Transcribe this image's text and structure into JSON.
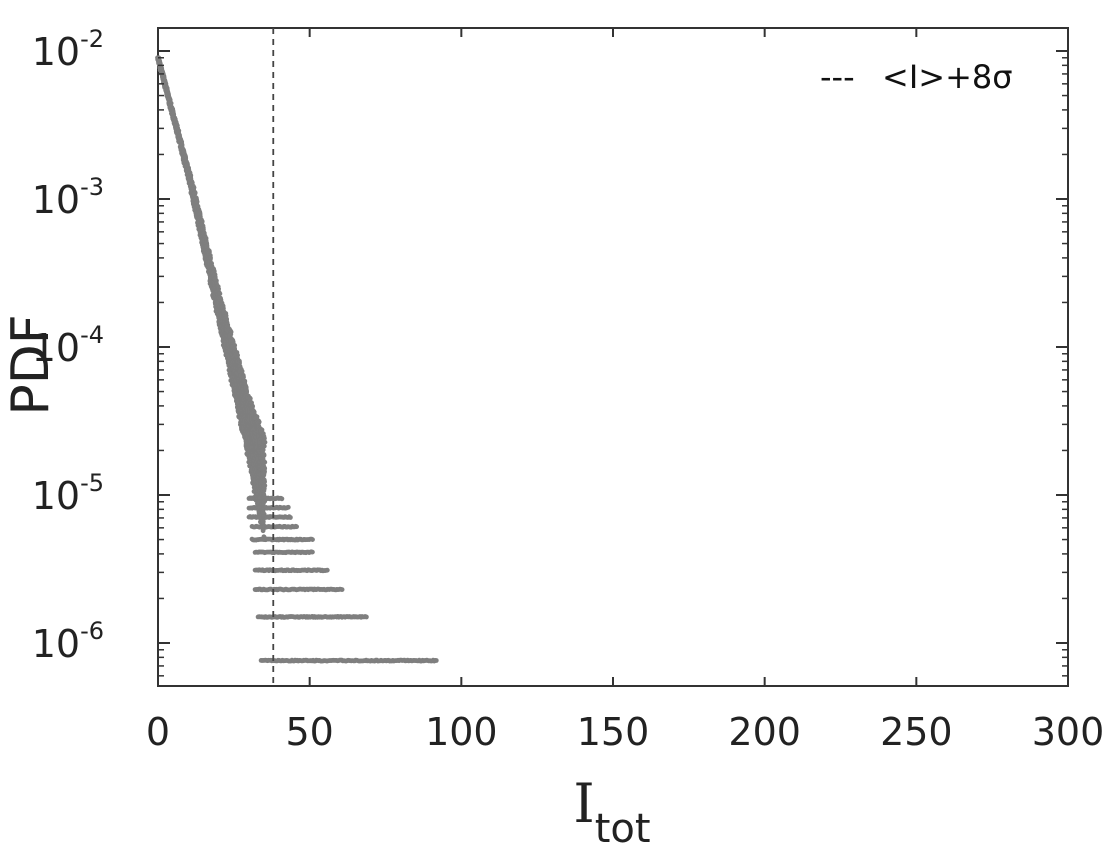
{
  "chart_data": {
    "type": "scatter",
    "title": "",
    "xlabel": "I",
    "xlabel_sub": "tot",
    "ylabel": "PDF",
    "xlim": [
      0,
      300
    ],
    "ylim": [
      5e-07,
      0.01
    ],
    "yscale": "log",
    "x_ticks": [
      "0",
      "50",
      "100",
      "150",
      "200",
      "250",
      "300"
    ],
    "y_ticks": [
      {
        "base": "10",
        "exp": "-2"
      },
      {
        "base": "10",
        "exp": "-3"
      },
      {
        "base": "10",
        "exp": "-4"
      },
      {
        "base": "10",
        "exp": "-5"
      },
      {
        "base": "10",
        "exp": "-6"
      }
    ],
    "grid": false,
    "legend_position": "top-right",
    "legend": {
      "line_style": "---",
      "label": "<I>+8σ"
    },
    "reference_line": {
      "x": 38,
      "style": "dashed",
      "color": "#444444"
    },
    "series_color": "#7f7f7f",
    "series": [
      {
        "trend": {
          "x": [
            0,
            10,
            20,
            30,
            35
          ],
          "y": [
            0.009,
            0.0015,
            0.00019,
            2.8e-05,
            1.1e-05
          ]
        },
        "spread": [
          0,
          0.03,
          0.1,
          0.22,
          0.35
        ],
        "tail_rows": [
          {
            "y": 9.5e-06,
            "x": [
              30,
              41
            ]
          },
          {
            "y": 8.2e-06,
            "x": [
              30,
              43
            ]
          },
          {
            "y": 7.1e-06,
            "x": [
              30,
              44
            ]
          },
          {
            "y": 6.1e-06,
            "x": [
              31,
              46
            ]
          },
          {
            "y": 5e-06,
            "x": [
              31,
              51
            ]
          },
          {
            "y": 4.1e-06,
            "x": [
              32,
              51
            ]
          },
          {
            "y": 3.1e-06,
            "x": [
              32,
              56
            ]
          },
          {
            "y": 2.3e-06,
            "x": [
              32,
              61
            ]
          },
          {
            "y": 1.5e-06,
            "x": [
              33,
              69
            ]
          },
          {
            "y": 7.6e-07,
            "x": [
              34,
              92
            ]
          }
        ]
      }
    ]
  }
}
